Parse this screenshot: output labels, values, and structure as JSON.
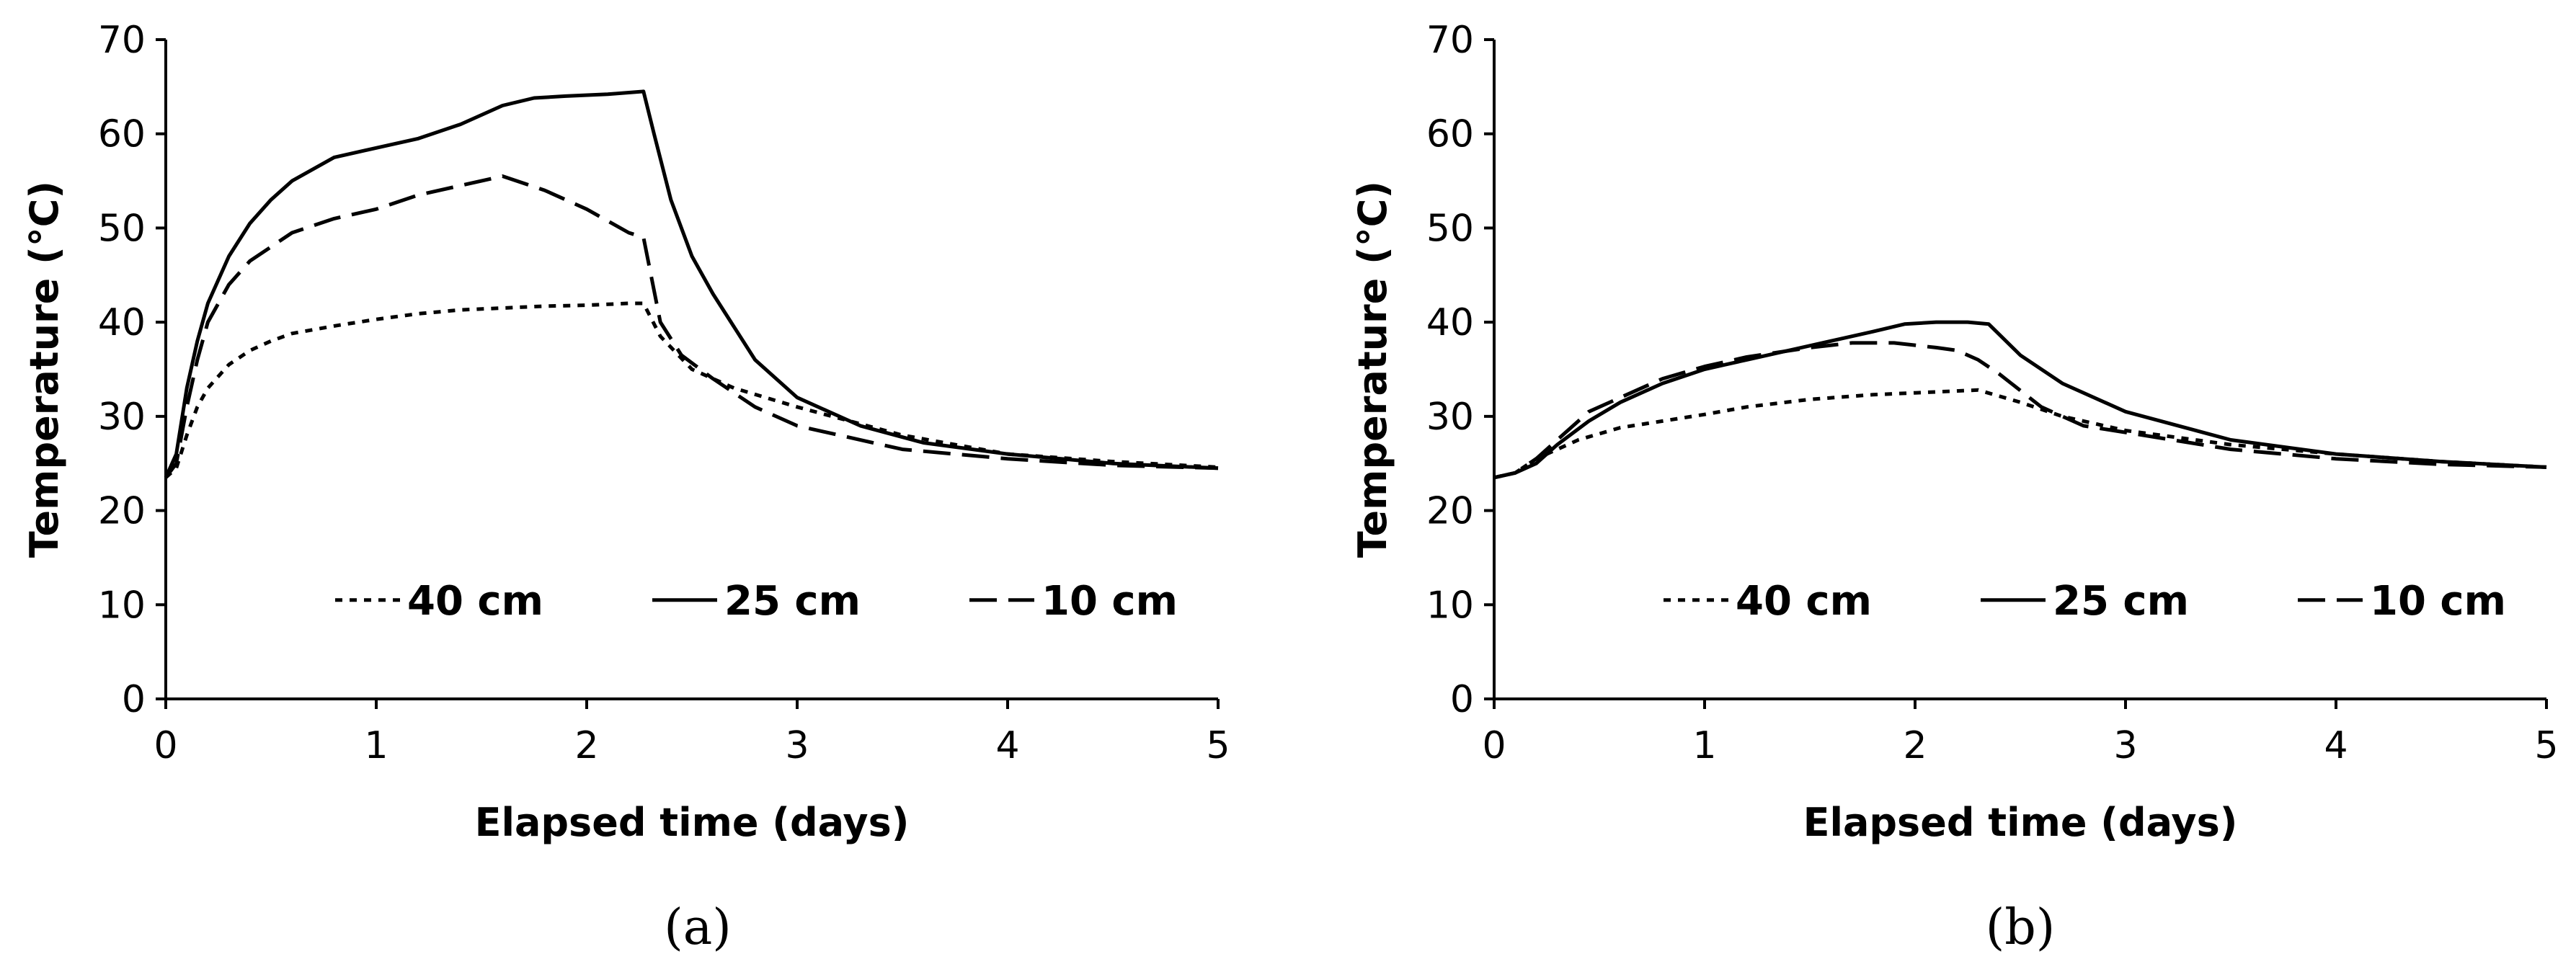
{
  "chart_data": [
    {
      "type": "line",
      "panel_label": "(a)",
      "xlabel": "Elapsed time  (days)",
      "ylabel": "Temperature  (°C)",
      "xlim": [
        0,
        5
      ],
      "ylim": [
        0,
        70
      ],
      "xticks": [
        0,
        1,
        2,
        3,
        4,
        5
      ],
      "yticks": [
        0,
        10,
        20,
        30,
        40,
        50,
        60,
        70
      ],
      "legend_placement": "bottom-center",
      "series": [
        {
          "name": "40 cm",
          "style": "dotted",
          "x": [
            0,
            0.05,
            0.1,
            0.15,
            0.2,
            0.3,
            0.4,
            0.5,
            0.6,
            0.8,
            1.0,
            1.2,
            1.4,
            1.6,
            1.8,
            2.0,
            2.2,
            2.27,
            2.35,
            2.5,
            2.7,
            3.0,
            3.5,
            4.0,
            4.5,
            5.0
          ],
          "values": [
            23.5,
            24.5,
            28,
            31,
            33,
            35.5,
            37,
            38,
            38.8,
            39.6,
            40.3,
            40.9,
            41.3,
            41.5,
            41.7,
            41.8,
            42,
            42,
            38.5,
            35,
            33,
            31,
            28,
            26,
            25.2,
            24.6
          ]
        },
        {
          "name": "25 cm",
          "style": "solid",
          "x": [
            0,
            0.05,
            0.1,
            0.15,
            0.2,
            0.3,
            0.4,
            0.5,
            0.6,
            0.8,
            1.0,
            1.2,
            1.4,
            1.6,
            1.75,
            1.9,
            2.1,
            2.27,
            2.32,
            2.4,
            2.5,
            2.6,
            2.8,
            3.0,
            3.3,
            3.6,
            4.0,
            4.5,
            5.0
          ],
          "values": [
            23.5,
            26,
            33,
            38,
            42,
            47,
            50.5,
            53,
            55,
            57.5,
            58.5,
            59.5,
            61,
            63,
            63.8,
            64,
            64.2,
            64.5,
            60,
            53,
            47,
            43,
            36,
            32,
            29,
            27.2,
            26,
            25,
            24.5
          ]
        },
        {
          "name": "10 cm",
          "style": "dashed",
          "x": [
            0,
            0.05,
            0.1,
            0.15,
            0.2,
            0.3,
            0.4,
            0.5,
            0.6,
            0.8,
            1.0,
            1.2,
            1.4,
            1.6,
            1.8,
            2.0,
            2.2,
            2.27,
            2.35,
            2.45,
            2.6,
            2.8,
            3.0,
            3.5,
            4.0,
            4.5,
            5.0
          ],
          "values": [
            23.5,
            25,
            31,
            36,
            40,
            44,
            46.5,
            48,
            49.5,
            51,
            52,
            53.5,
            54.5,
            55.5,
            54,
            52,
            49.5,
            49,
            40,
            36.5,
            34,
            31,
            29,
            26.5,
            25.5,
            24.8,
            24.5
          ]
        }
      ]
    },
    {
      "type": "line",
      "panel_label": "(b)",
      "xlabel": "Elapsed time  (days)",
      "ylabel": "Temperature  (°C)",
      "xlim": [
        0,
        5
      ],
      "ylim": [
        0,
        70
      ],
      "xticks": [
        0,
        1,
        2,
        3,
        4,
        5
      ],
      "yticks": [
        0,
        10,
        20,
        30,
        40,
        50,
        60,
        70
      ],
      "legend_placement": "bottom-center",
      "series": [
        {
          "name": "40 cm",
          "style": "dotted",
          "x": [
            0,
            0.1,
            0.2,
            0.4,
            0.6,
            0.8,
            1.0,
            1.2,
            1.5,
            1.8,
            2.0,
            2.3,
            2.5,
            2.7,
            3.0,
            3.5,
            4.0,
            4.5,
            5.0
          ],
          "values": [
            23.5,
            24,
            25.5,
            27.5,
            28.8,
            29.5,
            30.2,
            31,
            31.8,
            32.3,
            32.5,
            32.8,
            31.5,
            30,
            28.5,
            27,
            26,
            25.2,
            24.6
          ]
        },
        {
          "name": "25 cm",
          "style": "solid",
          "x": [
            0,
            0.1,
            0.2,
            0.3,
            0.45,
            0.6,
            0.8,
            1.0,
            1.2,
            1.5,
            1.8,
            1.95,
            2.1,
            2.25,
            2.35,
            2.5,
            2.7,
            3.0,
            3.5,
            4.0,
            4.5,
            5.0
          ],
          "values": [
            23.5,
            24,
            25,
            27,
            29.5,
            31.5,
            33.5,
            35,
            36,
            37.5,
            39,
            39.8,
            40,
            40,
            39.8,
            36.5,
            33.5,
            30.5,
            27.5,
            26,
            25.2,
            24.6
          ]
        },
        {
          "name": "10 cm",
          "style": "dashed",
          "x": [
            0,
            0.1,
            0.2,
            0.3,
            0.45,
            0.6,
            0.8,
            1.0,
            1.2,
            1.5,
            1.7,
            1.9,
            2.1,
            2.2,
            2.3,
            2.4,
            2.6,
            2.8,
            3.0,
            3.5,
            4.0,
            4.5,
            5.0
          ],
          "values": [
            23.5,
            24,
            25.5,
            27.5,
            30.5,
            32,
            34,
            35.3,
            36.3,
            37.3,
            37.8,
            37.8,
            37.3,
            37,
            36,
            34.5,
            31,
            29,
            28.3,
            26.5,
            25.5,
            24.9,
            24.6
          ]
        }
      ]
    }
  ]
}
